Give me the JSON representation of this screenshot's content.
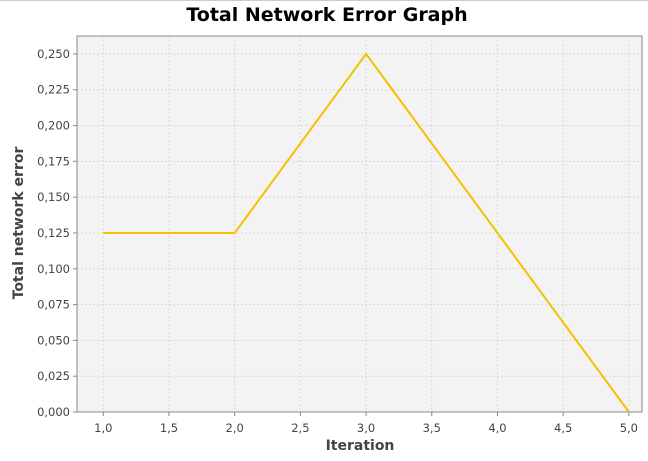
{
  "chart_data": {
    "type": "line",
    "title": "Total Network Error Graph",
    "xlabel": "Iteration",
    "ylabel": "Total network error",
    "xlim": [
      0.8,
      5.1
    ],
    "ylim": [
      0,
      0.2625
    ],
    "x_ticks": [
      1.0,
      1.5,
      2.0,
      2.5,
      3.0,
      3.5,
      4.0,
      4.5,
      5.0
    ],
    "x_tick_labels": [
      "1,0",
      "1,5",
      "2,0",
      "2,5",
      "3,0",
      "3,5",
      "4,0",
      "4,5",
      "5,0"
    ],
    "y_ticks": [
      0,
      0.025,
      0.05,
      0.075,
      0.1,
      0.125,
      0.15,
      0.175,
      0.2,
      0.225,
      0.25
    ],
    "y_tick_labels": [
      "0,000",
      "0,025",
      "0,050",
      "0,075",
      "0,100",
      "0,125",
      "0,150",
      "0,175",
      "0,200",
      "0,225",
      "0,250"
    ],
    "grid": true,
    "series": [
      {
        "x": [
          1,
          2,
          3,
          4,
          5
        ],
        "values": [
          0.125,
          0.125,
          0.25,
          0.125,
          0
        ]
      }
    ]
  },
  "colors": {
    "series": "#f5c000",
    "plot_background": "#f3f3f3",
    "grid": "#d8d8d8",
    "axis": "#888888"
  }
}
